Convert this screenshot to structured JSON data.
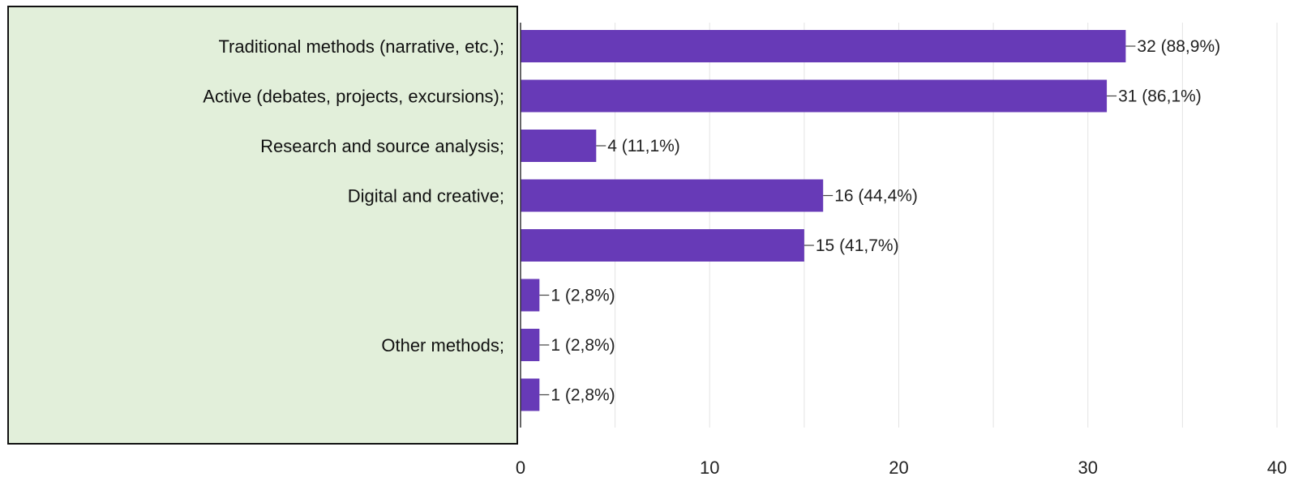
{
  "chart_data": {
    "type": "bar",
    "orientation": "horizontal",
    "bar_color": "#673ab7",
    "label_box_color": "#e2efda",
    "categories": [
      "Traditional methods (narrative, etc.);",
      "Active (debates, projects, excursions);",
      "Research and source analysis;",
      "Digital and creative;",
      "",
      "",
      "Other methods;",
      ""
    ],
    "values": [
      32,
      31,
      4,
      16,
      15,
      1,
      1,
      1
    ],
    "data_labels": [
      "32 (88,9%)",
      "31 (86,1%)",
      "4 (11,1%)",
      "16 (44,4%)",
      "15 (41,7%)",
      "1 (2,8%)",
      "1 (2,8%)",
      "1 (2,8%)"
    ],
    "x_ticks": [
      "0",
      "10",
      "20",
      "30",
      "40"
    ],
    "xlim": [
      0,
      40
    ],
    "grid": true
  }
}
